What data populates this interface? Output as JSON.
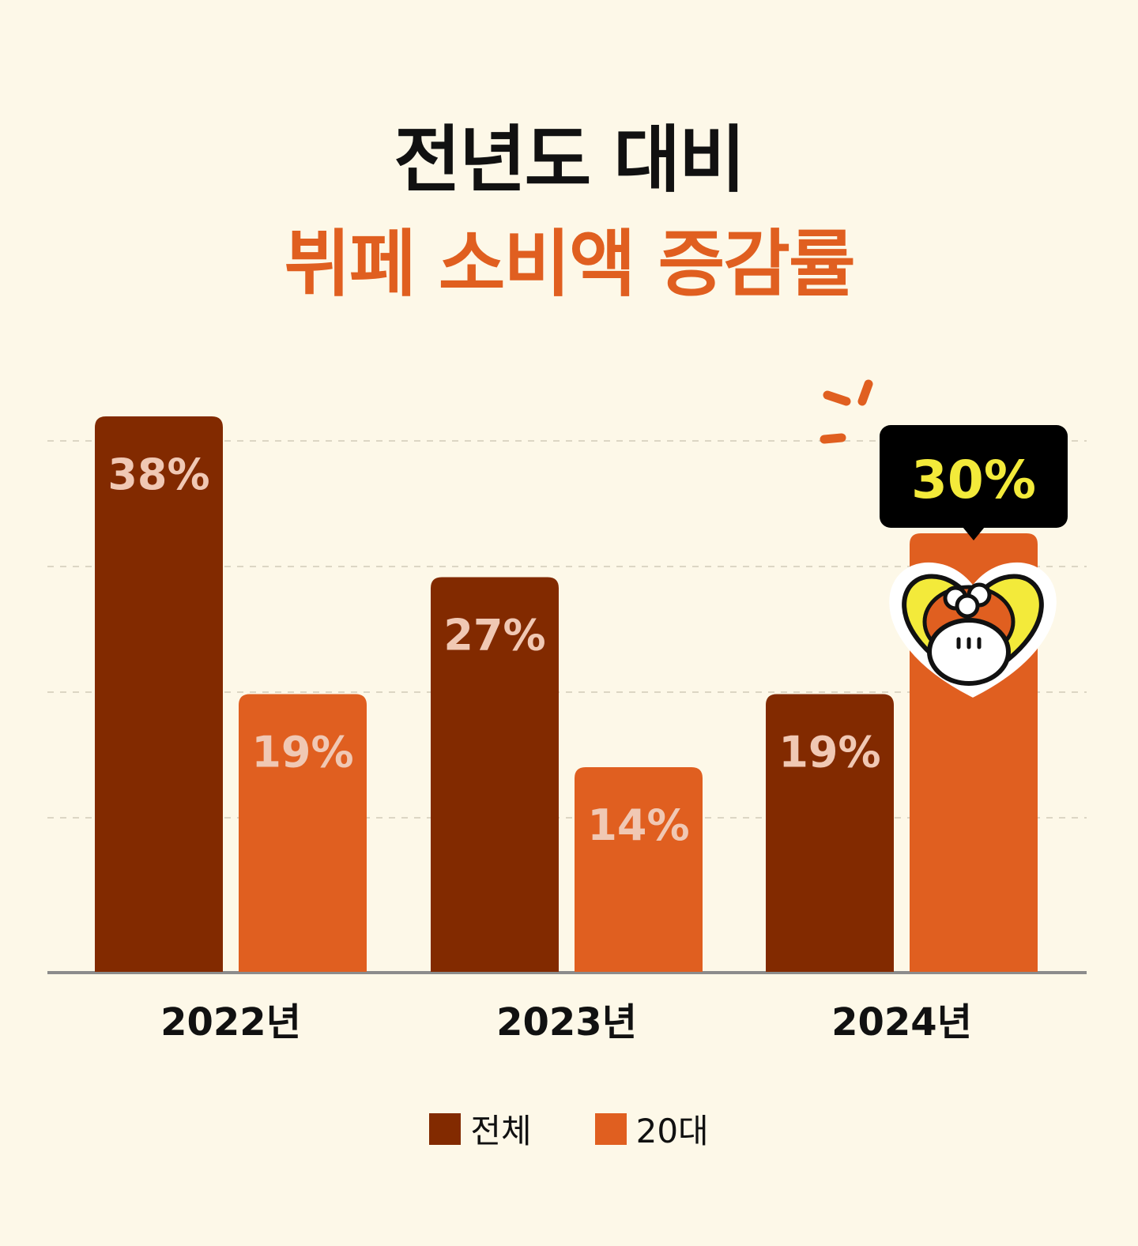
{
  "title": {
    "line1": "전년도 대비",
    "line2": "뷔페 소비액 증감률"
  },
  "colors": {
    "background": "#fdf8e8",
    "series_total": "#822a00",
    "series_20s": "#e05f20",
    "value_label": "#f0c8b4",
    "highlight_text": "#f3ea3a",
    "highlight_box": "#000000"
  },
  "icons": [
    "sparkle-lines-icon",
    "monkey-mascot-icon"
  ],
  "chart_data": {
    "type": "bar",
    "categories": [
      "2022년",
      "2023년",
      "2024년"
    ],
    "series": [
      {
        "name": "전체",
        "values": [
          38,
          27,
          19
        ],
        "labels": [
          "38%",
          "27%",
          "19%"
        ]
      },
      {
        "name": "20대",
        "values": [
          19,
          14,
          30
        ],
        "labels": [
          "19%",
          "14%",
          "30%"
        ]
      }
    ],
    "ylim": [
      0,
      45
    ],
    "grid": true,
    "legend": "bottom-center",
    "highlight": {
      "series": 1,
      "category": 2,
      "label": "30%"
    }
  }
}
